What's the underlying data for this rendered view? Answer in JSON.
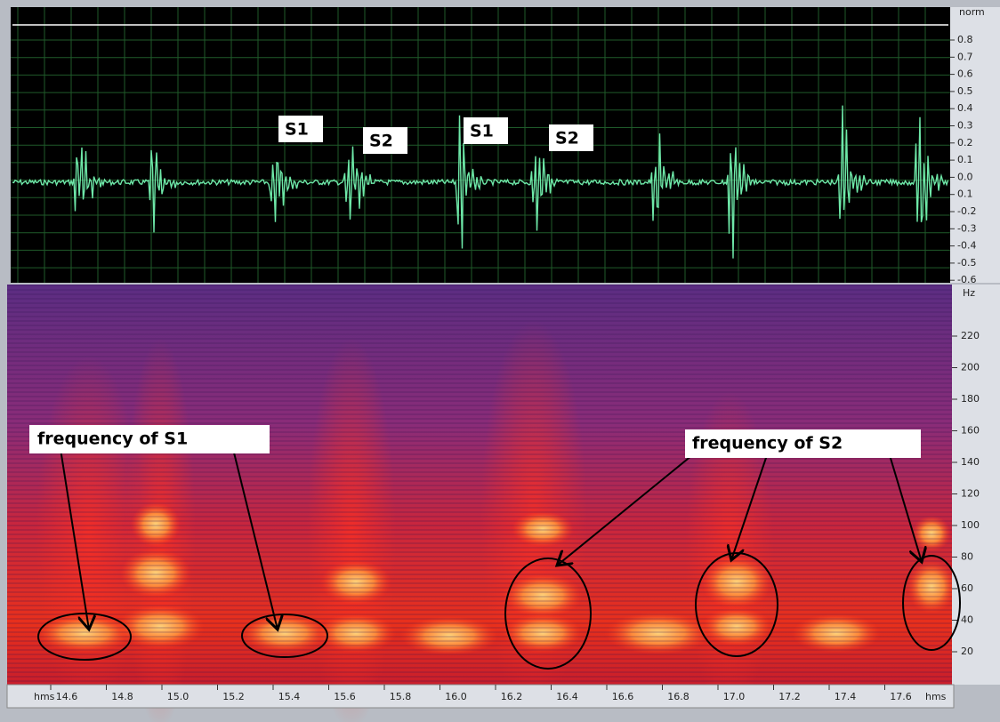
{
  "waveform": {
    "unit": "norm",
    "ticks": [
      "0.8",
      "0.7",
      "0.6",
      "0.5",
      "0.4",
      "0.3",
      "0.2",
      "0.1",
      "0.0",
      "0.1",
      "-0.2",
      "-0.3",
      "-0.4",
      "-0.5",
      "-0.6"
    ],
    "annotations": [
      "S1",
      "S2",
      "S1",
      "S2"
    ]
  },
  "spectrogram": {
    "unit": "Hz",
    "ticks": [
      "220",
      "200",
      "180",
      "160",
      "140",
      "120",
      "100",
      "80",
      "60",
      "40",
      "20"
    ],
    "annotations": [
      "frequency of S1",
      "frequency of S2"
    ]
  },
  "time_axis": {
    "unit_left": "hms",
    "unit_right": "hms",
    "ticks": [
      "14.6",
      "14.8",
      "15.0",
      "15.2",
      "15.4",
      "15.6",
      "15.8",
      "16.0",
      "16.2",
      "16.4",
      "16.6",
      "16.8",
      "17.0",
      "17.2",
      "17.4",
      "17.6"
    ]
  }
}
